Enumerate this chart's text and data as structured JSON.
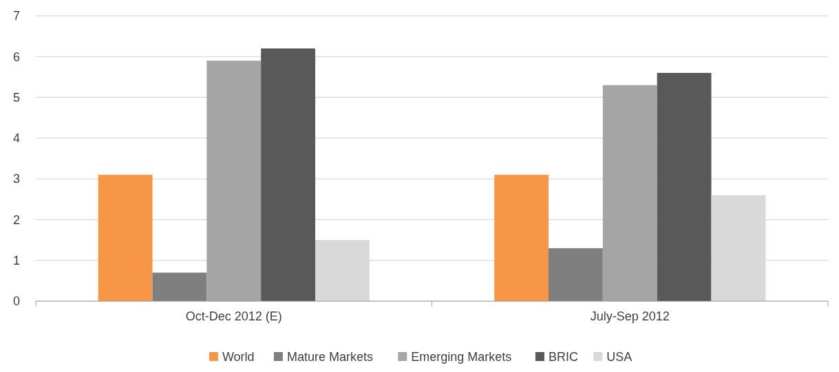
{
  "chart_data": {
    "type": "bar",
    "categories": [
      "Oct-Dec 2012 (E)",
      "July-Sep 2012"
    ],
    "series": [
      {
        "name": "World",
        "color": "#f79646",
        "values": [
          3.1,
          3.1
        ]
      },
      {
        "name": "Mature Markets",
        "color": "#7f7f7f",
        "values": [
          0.7,
          1.3
        ]
      },
      {
        "name": "Emerging Markets",
        "color": "#a5a5a5",
        "values": [
          5.9,
          5.3
        ]
      },
      {
        "name": "BRIC",
        "color": "#595959",
        "values": [
          6.2,
          5.6
        ]
      },
      {
        "name": "USA",
        "color": "#d9d9d9",
        "values": [
          1.5,
          2.6
        ]
      }
    ],
    "ylim": [
      0,
      7
    ],
    "yticks": [
      0,
      1,
      2,
      3,
      4,
      5,
      6,
      7
    ],
    "grid": "y",
    "legend": "bottom"
  }
}
